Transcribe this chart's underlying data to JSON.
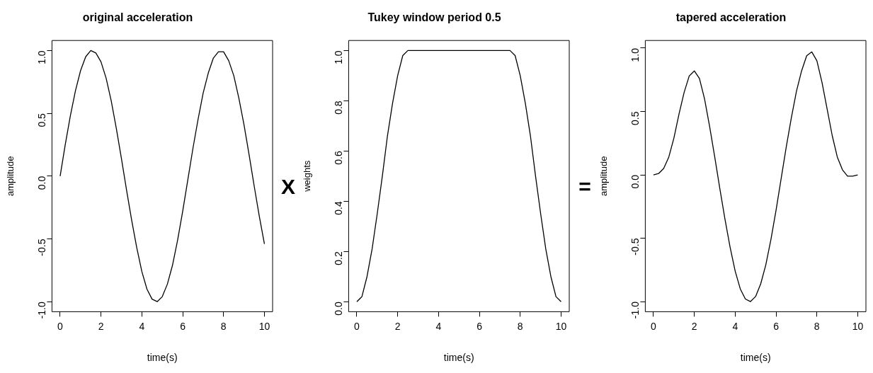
{
  "chart_data": [
    {
      "type": "line",
      "title": "original acceleration",
      "xlabel": "time(s)",
      "ylabel": "amplitude",
      "annotations": [
        "X"
      ],
      "marker": "none",
      "line_style": "solid",
      "grid": false,
      "legend": false,
      "x": [
        0,
        0.25,
        0.5,
        0.75,
        1,
        1.25,
        1.5,
        1.75,
        2,
        2.25,
        2.5,
        2.75,
        3,
        3.25,
        3.5,
        3.75,
        4,
        4.25,
        4.5,
        4.75,
        5,
        5.25,
        5.5,
        5.75,
        6,
        6.25,
        6.5,
        6.75,
        7,
        7.25,
        7.5,
        7.75,
        8,
        8.25,
        8.5,
        8.75,
        9,
        9.25,
        9.5,
        9.75,
        10
      ],
      "series": [
        {
          "color": "#000000",
          "values": [
            0,
            0.25,
            0.48,
            0.68,
            0.84,
            0.95,
            1.0,
            0.98,
            0.91,
            0.78,
            0.6,
            0.38,
            0.14,
            -0.11,
            -0.35,
            -0.57,
            -0.76,
            -0.9,
            -0.98,
            -1.0,
            -0.96,
            -0.86,
            -0.71,
            -0.51,
            -0.28,
            -0.03,
            0.22,
            0.45,
            0.66,
            0.82,
            0.94,
            0.99,
            0.99,
            0.92,
            0.8,
            0.62,
            0.41,
            0.17,
            -0.08,
            -0.32,
            -0.54
          ]
        }
      ],
      "xlim": [
        -0.4,
        10.4
      ],
      "xticks": [
        0,
        2,
        4,
        6,
        8,
        10
      ],
      "ylim": [
        -1.08,
        1.08
      ],
      "yticks": [
        {
          "value": -1,
          "label": "-1.0"
        },
        {
          "value": -0.5,
          "label": "-0.5"
        },
        {
          "value": 0,
          "label": "0.0"
        },
        {
          "value": 0.5,
          "label": "0.5"
        },
        {
          "value": 1,
          "label": "1.0"
        }
      ]
    },
    {
      "type": "line",
      "title": "Tukey window period 0.5",
      "xlabel": "time(s)",
      "ylabel": "weights",
      "annotations": [
        "="
      ],
      "marker": "none",
      "line_style": "solid",
      "grid": false,
      "legend": false,
      "x": [
        0,
        0.25,
        0.5,
        0.75,
        1,
        1.25,
        1.5,
        1.75,
        2,
        2.25,
        2.5,
        7.5,
        7.75,
        8,
        8.25,
        8.5,
        8.75,
        9,
        9.25,
        9.5,
        9.75,
        10
      ],
      "series": [
        {
          "color": "#000000",
          "values": [
            0,
            0.02,
            0.1,
            0.21,
            0.35,
            0.5,
            0.66,
            0.79,
            0.9,
            0.98,
            1.0,
            1.0,
            0.98,
            0.9,
            0.79,
            0.66,
            0.5,
            0.35,
            0.21,
            0.1,
            0.02,
            0
          ]
        }
      ],
      "xlim": [
        -0.4,
        10.4
      ],
      "xticks": [
        0,
        2,
        4,
        6,
        8,
        10
      ],
      "ylim": [
        -0.04,
        1.04
      ],
      "yticks": [
        {
          "value": 0,
          "label": "0.0"
        },
        {
          "value": 0.2,
          "label": "0.2"
        },
        {
          "value": 0.4,
          "label": "0.4"
        },
        {
          "value": 0.6,
          "label": "0.6"
        },
        {
          "value": 0.8,
          "label": "0.8"
        },
        {
          "value": 1,
          "label": "1.0"
        }
      ]
    },
    {
      "type": "line",
      "title": "tapered acceleration",
      "xlabel": "time(s)",
      "ylabel": "amplitude",
      "marker": "none",
      "line_style": "solid",
      "grid": false,
      "legend": false,
      "x": [
        0,
        0.25,
        0.5,
        0.75,
        1,
        1.25,
        1.5,
        1.75,
        2,
        2.25,
        2.5,
        2.75,
        3,
        3.25,
        3.5,
        3.75,
        4,
        4.25,
        4.5,
        4.75,
        5,
        5.25,
        5.5,
        5.75,
        6,
        6.25,
        6.5,
        6.75,
        7,
        7.25,
        7.5,
        7.75,
        8,
        8.25,
        8.5,
        8.75,
        9,
        9.25,
        9.5,
        9.75,
        10
      ],
      "series": [
        {
          "color": "#000000",
          "values": [
            0,
            0.01,
            0.05,
            0.14,
            0.29,
            0.48,
            0.65,
            0.78,
            0.82,
            0.76,
            0.6,
            0.38,
            0.14,
            -0.11,
            -0.35,
            -0.57,
            -0.76,
            -0.9,
            -0.98,
            -1.0,
            -0.96,
            -0.86,
            -0.71,
            -0.51,
            -0.28,
            -0.03,
            0.22,
            0.45,
            0.66,
            0.82,
            0.94,
            0.97,
            0.9,
            0.73,
            0.52,
            0.31,
            0.14,
            0.04,
            -0.01,
            -0.01,
            0
          ]
        }
      ],
      "xlim": [
        -0.4,
        10.4
      ],
      "xticks": [
        0,
        2,
        4,
        6,
        8,
        10
      ],
      "ylim": [
        -1.08,
        1.06
      ],
      "yticks": [
        {
          "value": -1,
          "label": "-1.0"
        },
        {
          "value": -0.5,
          "label": "-0.5"
        },
        {
          "value": 0,
          "label": "0.0"
        },
        {
          "value": 0.5,
          "label": "0.5"
        },
        {
          "value": 1,
          "label": "1.0"
        }
      ]
    }
  ]
}
